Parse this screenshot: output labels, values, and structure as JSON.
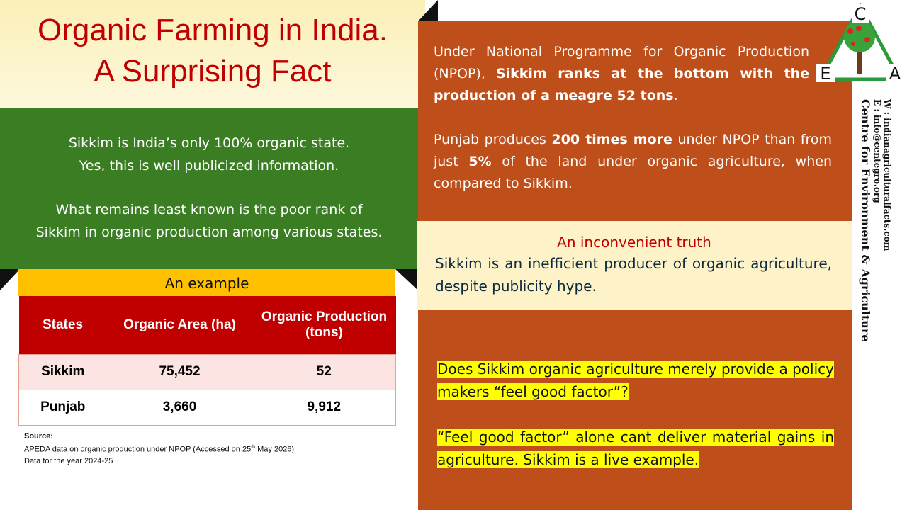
{
  "header": {
    "title_line1": "Organic Farming in India.",
    "title_line2": "A Surprising Fact"
  },
  "green_panel": {
    "lines": [
      "Sikkim is India’s only 100% organic state.",
      "Yes, this is well publicized information.",
      "What remains least known is the poor rank of",
      "Sikkim in organic production among various states."
    ]
  },
  "table": {
    "caption": "An example",
    "header": [
      "States",
      "Organic Area (ha)",
      "Organic Production (tons)"
    ],
    "rows": [
      [
        "Sikkim",
        "75,452",
        "52"
      ],
      [
        "Punjab",
        "3,660",
        "9,912"
      ]
    ]
  },
  "source": {
    "label": "Source:",
    "line1_before": "APEDA data on organic production under NPOP (Accessed on 25",
    "line1_sup": "th",
    "line1_after": " May 2026)",
    "line2": "Data for the year 2024-25"
  },
  "brown_panel": {
    "paragraphs": [
      [
        {
          "text": "Under National Programme for Organic Production (NPOP), ",
          "bold": false
        },
        {
          "text": "Sikkim ranks at the bottom with the production of a meagre 52 tons",
          "bold": true
        },
        {
          "text": ".",
          "bold": false
        }
      ],
      [
        {
          "text": "Punjab produces ",
          "bold": false
        },
        {
          "text": "200 times more",
          "bold": true
        },
        {
          "text": " under NPOP than from just ",
          "bold": false
        },
        {
          "text": "5%",
          "bold": true
        },
        {
          "text": " of the land under organic agriculture, when compared to Sikkim.",
          "bold": false
        }
      ]
    ]
  },
  "truth_box": {
    "heading": "An inconvenient truth",
    "text": "Sikkim is an inefficient producer of organic agriculture, despite publicity hype."
  },
  "questions": [
    "Does Sikkim organic agriculture merely provide a policy makers “feel good factor”?",
    "“Feel good factor” alone cant deliver material gains in agriculture. Sikkim is a live example."
  ],
  "org": {
    "logo_letters": [
      "C",
      "E",
      "A"
    ],
    "name": "Centre for Environment & Agriculture",
    "email": "E : info@centegro.org",
    "web": "W : indianagriculturalfacts.com"
  }
}
